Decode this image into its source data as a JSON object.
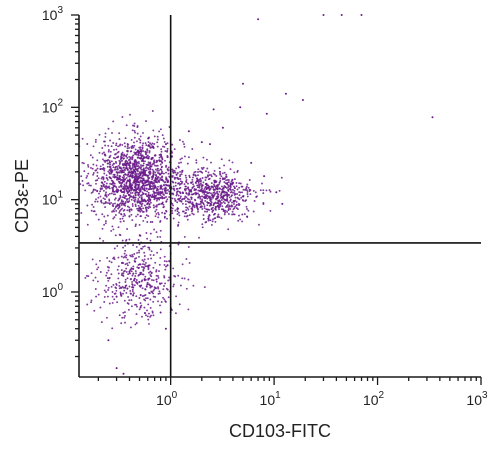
{
  "chart_data": {
    "type": "scatter",
    "title": "",
    "xlabel": "CD103-FITC",
    "ylabel": "CD3ε-PE",
    "xscale": "log",
    "yscale": "log",
    "xlim": [
      0.13,
      1000
    ],
    "ylim": [
      0.12,
      1000
    ],
    "x_ticks": [
      {
        "base": "10",
        "exp": "0",
        "value": 1
      },
      {
        "base": "10",
        "exp": "1",
        "value": 10
      },
      {
        "base": "10",
        "exp": "2",
        "value": 100
      },
      {
        "base": "10",
        "exp": "3",
        "value": 1000
      }
    ],
    "y_ticks": [
      {
        "base": "10",
        "exp": "0",
        "value": 1
      },
      {
        "base": "10",
        "exp": "1",
        "value": 10
      },
      {
        "base": "10",
        "exp": "2",
        "value": 100
      },
      {
        "base": "10",
        "exp": "3",
        "value": 1000
      }
    ],
    "quadrant_gates": {
      "x": 1.0,
      "y": 3.4
    },
    "point_color": "#6a1b8a",
    "clusters": [
      {
        "center": [
          0.48,
          17
        ],
        "spread": [
          0.22,
          0.22
        ],
        "count": 1500
      },
      {
        "center": [
          2.4,
          11
        ],
        "spread": [
          0.22,
          0.14
        ],
        "count": 700
      },
      {
        "center": [
          0.5,
          1.4
        ],
        "spread": [
          0.2,
          0.22
        ],
        "count": 450
      }
    ],
    "outliers": [
      [
        7.0,
        900
      ],
      [
        3.2,
        60
      ],
      [
        2.4,
        40
      ],
      [
        4.7,
        100
      ],
      [
        8.5,
        85
      ],
      [
        13,
        140
      ],
      [
        2.6,
        95
      ],
      [
        19,
        120
      ],
      [
        340,
        78
      ],
      [
        3.0,
        20
      ],
      [
        4.0,
        15
      ],
      [
        6.0,
        25
      ],
      [
        2.0,
        42
      ],
      [
        1.5,
        55
      ],
      [
        0.9,
        40
      ],
      [
        5.0,
        180
      ],
      [
        30,
        1000
      ],
      [
        45,
        1000
      ],
      [
        70,
        1000
      ],
      [
        0.3,
        0.15
      ],
      [
        0.35,
        0.13
      ],
      [
        0.25,
        0.3
      ],
      [
        1.6,
        8
      ],
      [
        5.5,
        6.5
      ],
      [
        8.0,
        18
      ],
      [
        10.5,
        12
      ],
      [
        12,
        9
      ],
      [
        0.8,
        0.6
      ],
      [
        0.9,
        0.4
      ]
    ]
  }
}
